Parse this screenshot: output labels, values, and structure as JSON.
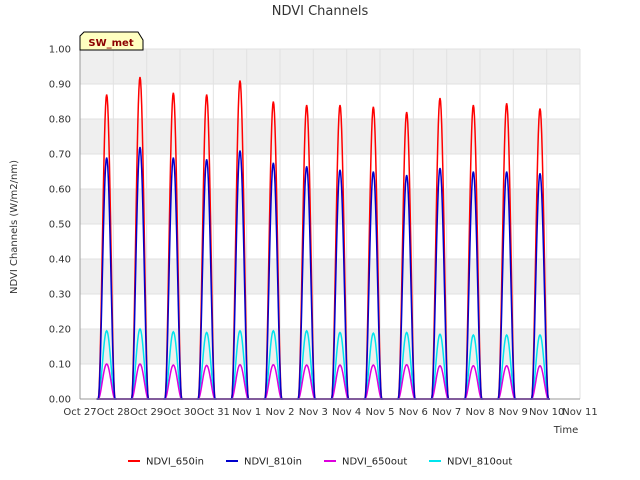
{
  "chart_data": {
    "type": "line",
    "title": "NDVI Channels",
    "xlabel": "Time",
    "ylabel": "NDVI Channels (W/m2/nm)",
    "ylim": [
      0,
      1.0
    ],
    "xlim": [
      0,
      15
    ],
    "grid": true,
    "legend_position": "bottom-center",
    "badge": "SW_met",
    "x_tick_labels": [
      "Oct 27",
      "Oct 28",
      "Oct 29",
      "Oct 30",
      "Oct 31",
      "Nov 1",
      "Nov 2",
      "Nov 3",
      "Nov 4",
      "Nov 5",
      "Nov 6",
      "Nov 7",
      "Nov 8",
      "Nov 9",
      "Nov 10",
      "Nov 11"
    ],
    "y_tick_labels": [
      "0.00",
      "0.10",
      "0.20",
      "0.30",
      "0.40",
      "0.50",
      "0.60",
      "0.70",
      "0.80",
      "0.90",
      "1.00"
    ],
    "day_peak_centers": [
      0.8,
      1.8,
      2.8,
      3.8,
      4.8,
      5.8,
      6.8,
      7.8,
      8.8,
      9.8,
      10.8,
      11.8,
      12.8,
      13.8
    ],
    "series": [
      {
        "name": "NDVI_650in",
        "color": "#ff0000",
        "peaks": [
          0.87,
          0.92,
          0.875,
          0.87,
          0.91,
          0.85,
          0.84,
          0.84,
          0.835,
          0.82,
          0.86,
          0.84,
          0.845,
          0.83
        ]
      },
      {
        "name": "NDVI_810in",
        "color": "#0000cc",
        "peaks": [
          0.69,
          0.72,
          0.69,
          0.685,
          0.71,
          0.675,
          0.665,
          0.655,
          0.65,
          0.64,
          0.66,
          0.65,
          0.65,
          0.645
        ]
      },
      {
        "name": "NDVI_650out",
        "color": "#dd00dd",
        "peaks": [
          0.1,
          0.1,
          0.097,
          0.096,
          0.098,
          0.098,
          0.097,
          0.097,
          0.097,
          0.098,
          0.095,
          0.095,
          0.095,
          0.095
        ]
      },
      {
        "name": "NDVI_810out",
        "color": "#00e5ee",
        "peaks": [
          0.195,
          0.2,
          0.192,
          0.19,
          0.195,
          0.195,
          0.195,
          0.19,
          0.188,
          0.19,
          0.185,
          0.183,
          0.183,
          0.183
        ]
      }
    ]
  }
}
